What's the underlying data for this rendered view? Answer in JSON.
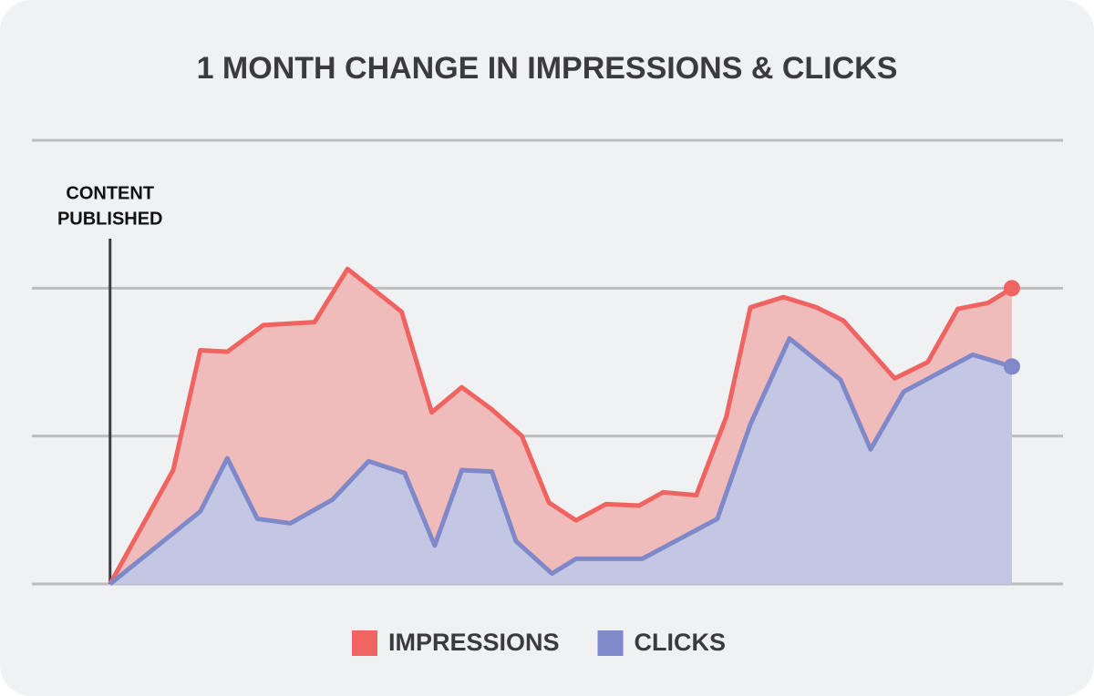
{
  "chart_data": {
    "type": "area",
    "title": "1 MONTH CHANGE IN IMPRESSIONS & CLICKS",
    "xlim": [
      -2.6,
      31.7
    ],
    "ylim": [
      0,
      3
    ],
    "yticks": [
      0,
      1,
      2,
      3
    ],
    "grid": true,
    "legend": "bottom",
    "annotation": {
      "text": [
        "CONTENT",
        "PUBLISHED"
      ],
      "x": 0
    },
    "series": [
      {
        "name": "IMPRESSIONS",
        "color": "#ef6461",
        "fill": "#f0bcbb",
        "x": [
          0,
          2.1,
          3.0,
          3.9,
          5.1,
          6.8,
          7.9,
          9.7,
          10.7,
          11.7,
          12.7,
          13.7,
          14.6,
          15.5,
          16.5,
          17.6,
          18.4,
          19.5,
          20.5,
          21.3,
          22.4,
          23.5,
          24.4,
          26.1,
          27.2,
          28.2,
          29.2,
          30
        ],
        "values": [
          0,
          0.77,
          1.58,
          1.57,
          1.75,
          1.77,
          2.13,
          1.84,
          1.16,
          1.33,
          1.18,
          1.0,
          0.55,
          0.43,
          0.54,
          0.53,
          0.62,
          0.6,
          1.13,
          1.87,
          1.94,
          1.87,
          1.78,
          1.39,
          1.5,
          1.86,
          1.9,
          2.0
        ]
      },
      {
        "name": "CLICKS",
        "color": "#7f88c8",
        "fill": "#c3c7e3",
        "x": [
          0,
          3.0,
          3.9,
          4.9,
          6.0,
          7.4,
          8.6,
          9.8,
          10.8,
          11.7,
          12.7,
          13.5,
          14.7,
          15.5,
          17.7,
          20.2,
          21.3,
          22.6,
          24.3,
          25.3,
          26.4,
          28.7,
          30
        ],
        "values": [
          0,
          0.49,
          0.85,
          0.44,
          0.41,
          0.57,
          0.83,
          0.75,
          0.26,
          0.77,
          0.76,
          0.29,
          0.07,
          0.17,
          0.17,
          0.44,
          1.08,
          1.66,
          1.38,
          0.91,
          1.3,
          1.55,
          1.47
        ]
      }
    ]
  }
}
